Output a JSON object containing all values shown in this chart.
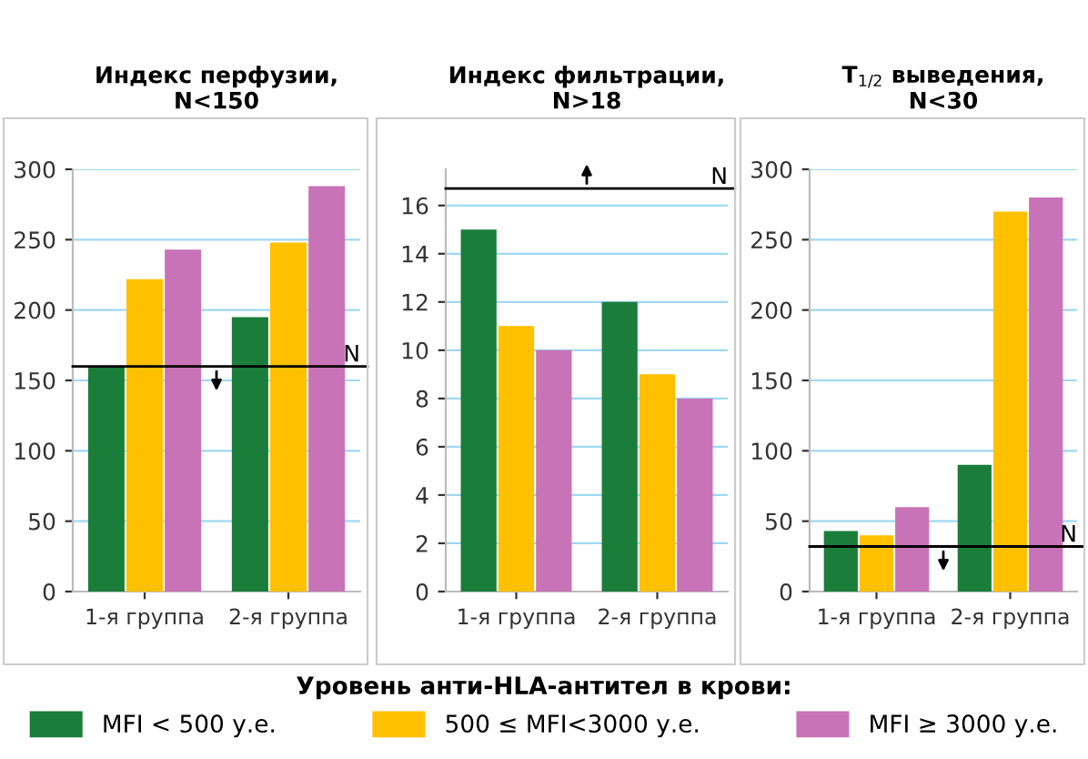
{
  "chart_data": [
    {
      "type": "bar",
      "title": "Индекс перфузии,\nN<150",
      "categories": [
        "1-я группа",
        "2-я группа"
      ],
      "series": [
        {
          "name": "MFI < 500 у.е.",
          "color": "#1b7d3a",
          "values": [
            160,
            195
          ]
        },
        {
          "name": "500 ≤ MFI<3000 у.е.",
          "color": "#ffc000",
          "values": [
            222,
            248
          ]
        },
        {
          "name": "MFI ≥ 3000 у.е.",
          "color": "#c873b8",
          "values": [
            243,
            288
          ]
        }
      ],
      "ylim": [
        0,
        300
      ],
      "yticks": [
        0,
        50,
        100,
        150,
        200,
        250,
        300
      ],
      "grid": "y",
      "ref_lines": [
        {
          "axis": "y",
          "value": 160,
          "label": "N"
        }
      ],
      "legend": "bottom",
      "legend_title": "Уровень анти-HLA-антител в крови:"
    },
    {
      "type": "bar",
      "title": "Индекс фильтрации,\nN>18",
      "categories": [
        "1-я группа",
        "2-я группа"
      ],
      "series": [
        {
          "color": "#1b7d3a",
          "values": [
            15,
            12
          ]
        },
        {
          "color": "#ffc000",
          "values": [
            11,
            9
          ]
        },
        {
          "color": "#c873b8",
          "values": [
            10,
            8
          ]
        }
      ],
      "ylim": [
        0,
        17.5
      ],
      "yticks": [
        0,
        2,
        4,
        6,
        8,
        10,
        12,
        14,
        16
      ],
      "grid": "y",
      "ref_lines": [
        {
          "axis": "y",
          "value": 16.7,
          "label": "N"
        }
      ]
    },
    {
      "type": "bar",
      "title": "T$_{1/2}$ выведения,\nN<30",
      "categories": [
        "1-я группа",
        "2-я группа"
      ],
      "series": [
        {
          "color": "#1b7d3a",
          "values": [
            43,
            90
          ]
        },
        {
          "color": "#ffc000",
          "values": [
            40,
            270
          ]
        },
        {
          "color": "#c873b8",
          "values": [
            60,
            280
          ]
        }
      ],
      "ylim": [
        0,
        300
      ],
      "yticks": [
        0,
        50,
        100,
        150,
        200,
        250,
        300
      ],
      "grid": "y",
      "ref_lines": [
        {
          "axis": "y",
          "value": 32,
          "label": "N"
        }
      ]
    }
  ]
}
